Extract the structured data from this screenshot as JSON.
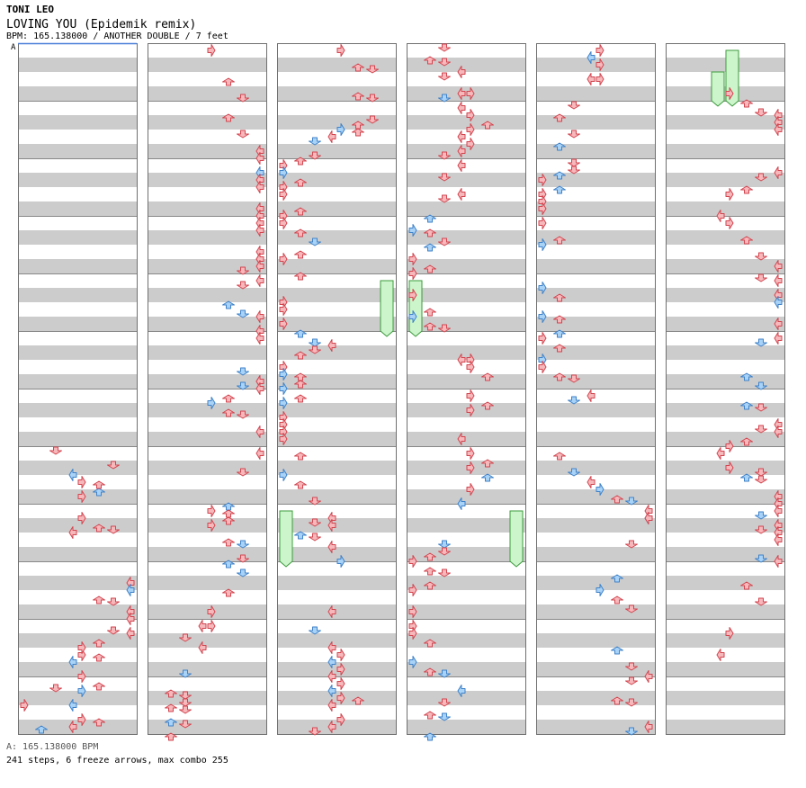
{
  "header": {
    "artist": "TONI LEO",
    "song_title": "LOVING YOU (Epidemik remix)",
    "meta_line": "BPM: 165.138000 / ANOTHER DOUBLE / 7 feet",
    "section_marker": "A"
  },
  "footer": {
    "bpm_line": "A: 165.138000 BPM",
    "stats_line": "241 steps, 6 freeze arrows, max combo 255"
  },
  "colors": {
    "stripe_gray": "#cccccc",
    "measure_line": "#888888",
    "note_red": "#f7b8bc",
    "note_red_border": "#d2454f",
    "note_blue": "#a9d2f7",
    "note_blue_border": "#3f82c8",
    "freeze_fill": "#ccf5cc",
    "freeze_border": "#3c9a3c",
    "bpm_marker": "#4a7fd8"
  },
  "chart_data": {
    "type": "step-chart",
    "columns": 6,
    "measures_per_column": 12,
    "lanes": 8,
    "beats_per_measure": 4,
    "lane_directions": [
      "left",
      "down",
      "up",
      "right",
      "left",
      "down",
      "up",
      "right"
    ],
    "freeze_count": 6,
    "freezes": [
      {
        "column": 2,
        "lane": 7,
        "start_measure": 4,
        "start_beat": 0.0,
        "end_beat": 3.5
      },
      {
        "column": 2,
        "lane": 0,
        "start_measure": 8,
        "start_beat": 0.0,
        "end_beat": 3.5
      },
      {
        "column": 3,
        "lane": 0,
        "start_measure": 4,
        "start_beat": 0.0,
        "end_beat": 3.5
      },
      {
        "column": 3,
        "lane": 7,
        "start_measure": 8,
        "start_beat": 0.0,
        "end_beat": 3.5
      },
      {
        "column": 5,
        "lane": 3,
        "start_measure": 0,
        "start_beat": 1.5,
        "end_beat": 3.5
      },
      {
        "column": 5,
        "lane": 4,
        "start_measure": 0,
        "start_beat": 0.0,
        "end_beat": 3.5
      }
    ]
  }
}
